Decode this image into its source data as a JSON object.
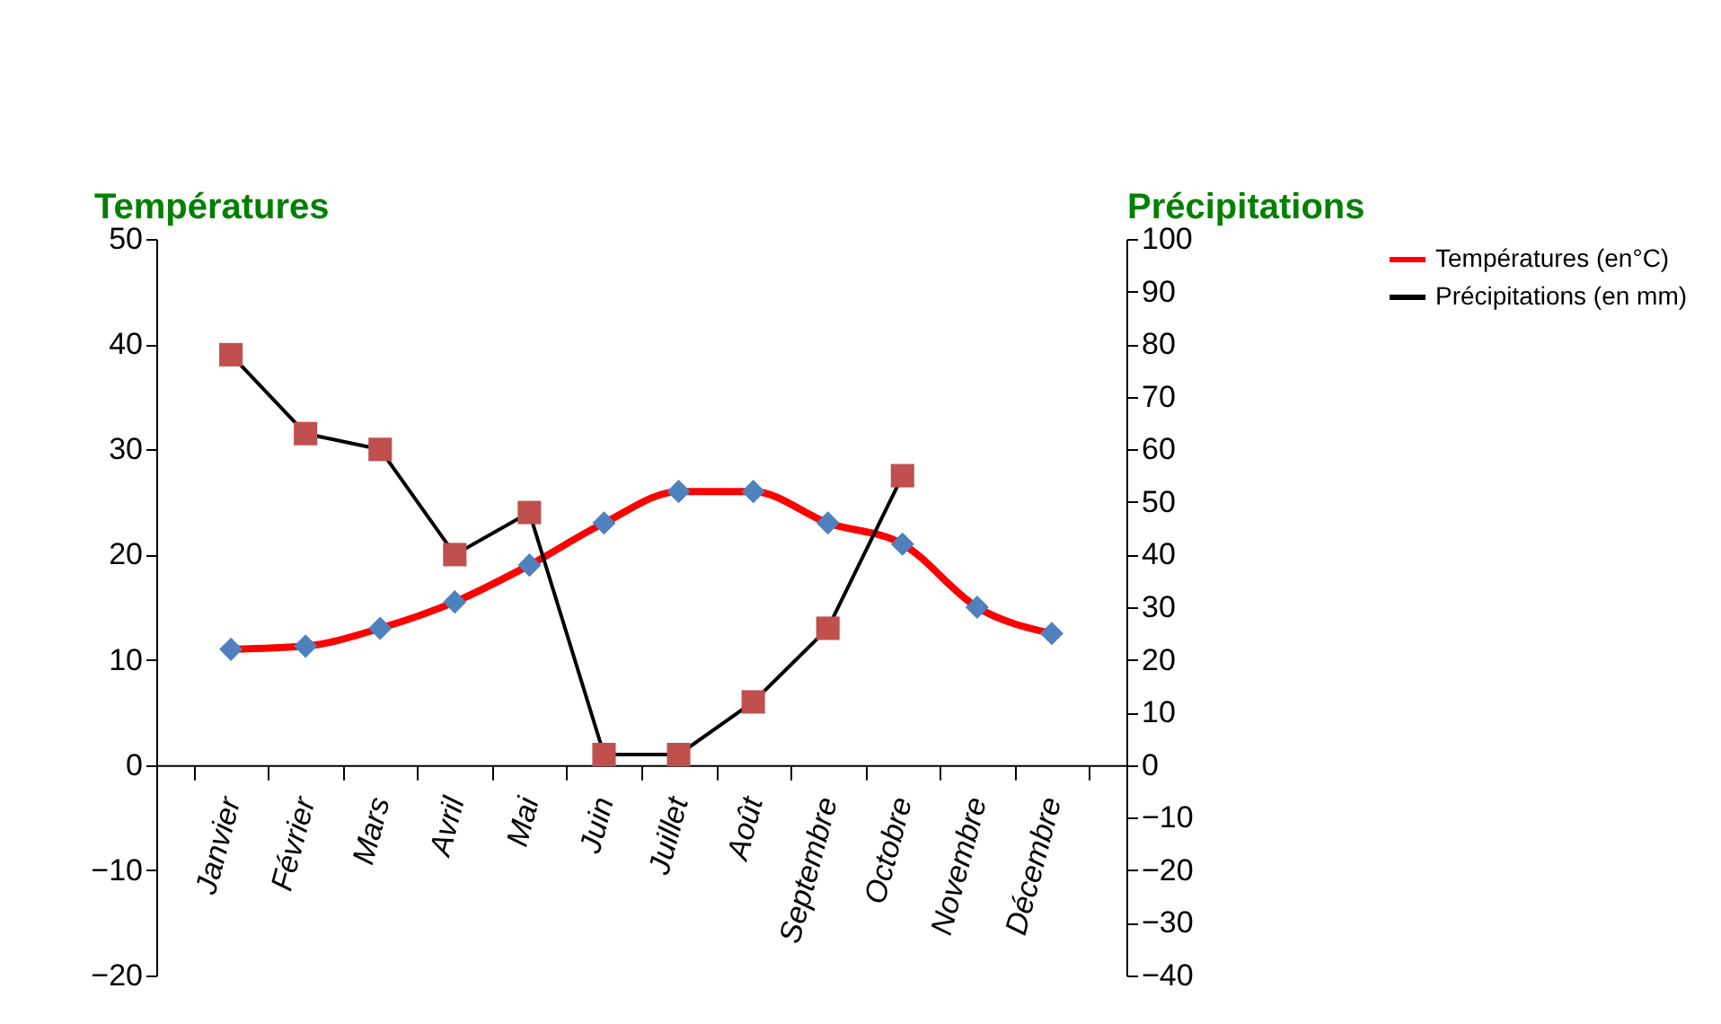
{
  "chart_data": {
    "type": "line",
    "ylabel": "Températures",
    "y2label": "Précipitations",
    "categories": [
      "Janvier",
      "Février",
      "Mars",
      "Avril",
      "Mai",
      "Juin",
      "Juillet",
      "Août",
      "Septembre",
      "Octobre",
      "Novembre",
      "Décembre"
    ],
    "series": [
      {
        "name": "Températures (en°C)",
        "color": "#ff0000",
        "marker": "diamond",
        "colors": [
          "#4f81bd",
          "#4f81bd",
          "#4f81bd",
          "#4f81bd",
          "#4f81bd",
          "#4f81bd",
          "#4f81bd",
          "#4f81bd",
          "#4f81bd",
          "#4f81bd",
          "#4f81bd",
          "#4f81bd"
        ],
        "values": [
          11,
          11.3,
          13,
          15.5,
          19,
          23,
          26,
          26,
          23,
          21,
          15,
          12.5
        ]
      },
      {
        "name": "Précipitations (en mm)",
        "color": "#000000",
        "marker": "square",
        "colors": [
          "#c0504d",
          "#c0504d",
          "#c0504d",
          "#c0504d",
          "#c0504d",
          "#c0504d",
          "#c0504d",
          "#c0504d",
          "#c0504d",
          "#c0504d",
          "#c0504d",
          "#c0504d"
        ],
        "axis": "y2",
        "values": [
          78,
          63,
          60,
          40,
          48,
          2,
          2,
          12,
          26,
          55,
          null,
          null
        ]
      }
    ],
    "ylim": [
      -20,
      50
    ],
    "yticks": [
      -20,
      -10,
      0,
      10,
      20,
      30,
      40,
      50
    ],
    "y2lim": [
      -40,
      100
    ],
    "y2ticks": [
      -40,
      -30,
      -20,
      -10,
      0,
      10,
      20,
      30,
      40,
      50,
      60,
      70,
      80,
      90,
      100
    ],
    "grid": false,
    "legend": "right"
  }
}
